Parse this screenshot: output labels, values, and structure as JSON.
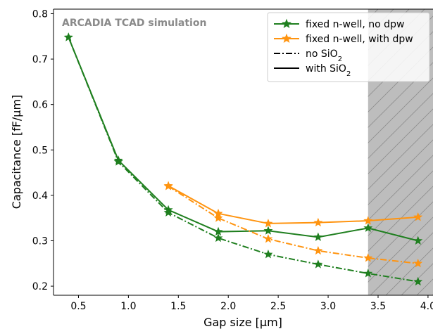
{
  "chart_data": {
    "type": "line",
    "annotation": "ARCADIA TCAD simulation",
    "xlabel": "Gap size [μm]",
    "ylabel": "Capacitance [fF/μm]",
    "xlim": [
      0.25,
      4.05
    ],
    "ylim": [
      0.18,
      0.81
    ],
    "xticks": [
      "0.5",
      "1.0",
      "1.5",
      "2.0",
      "2.5",
      "3.0",
      "3.5",
      "4.0"
    ],
    "yticks": [
      "0.2",
      "0.3",
      "0.4",
      "0.5",
      "0.6",
      "0.7",
      "0.8"
    ],
    "shaded_region": {
      "x_from": 3.4,
      "x_to": 4.05,
      "fill": "#bdbdbd",
      "hatch": "//"
    },
    "legend_position": "top-right",
    "legend": [
      {
        "label": "fixed n-well, no dpw",
        "kind": "color",
        "color": "#1f7f1f"
      },
      {
        "label": "fixed n-well, with dpw",
        "kind": "color",
        "color": "#ff9410"
      },
      {
        "label": "no SiO",
        "sub": "2",
        "kind": "style",
        "dash": "dashdot"
      },
      {
        "label": "with SiO",
        "sub": "2",
        "kind": "style",
        "dash": "solid"
      }
    ],
    "series": [
      {
        "color": "#1f7f1f",
        "dash": "solid",
        "x": [
          0.4,
          0.9,
          1.4,
          1.9,
          2.4,
          2.9,
          3.4,
          3.9
        ],
        "y": [
          0.748,
          0.477,
          0.368,
          0.32,
          0.322,
          0.308,
          0.328,
          0.3
        ]
      },
      {
        "color": "#1f7f1f",
        "dash": "dashdot",
        "x": [
          0.4,
          0.9,
          1.4,
          1.9,
          2.4,
          2.9,
          3.4,
          3.9
        ],
        "y": [
          0.748,
          0.474,
          0.362,
          0.306,
          0.27,
          0.248,
          0.228,
          0.21
        ]
      },
      {
        "color": "#ff9410",
        "dash": "solid",
        "x": [
          1.4,
          1.9,
          2.4,
          2.9,
          3.4,
          3.9
        ],
        "y": [
          0.421,
          0.36,
          0.338,
          0.34,
          0.344,
          0.352
        ]
      },
      {
        "color": "#ff9410",
        "dash": "dashdot",
        "x": [
          1.4,
          1.9,
          2.4,
          2.9,
          3.4,
          3.9
        ],
        "y": [
          0.42,
          0.35,
          0.304,
          0.278,
          0.262,
          0.25
        ]
      }
    ]
  }
}
